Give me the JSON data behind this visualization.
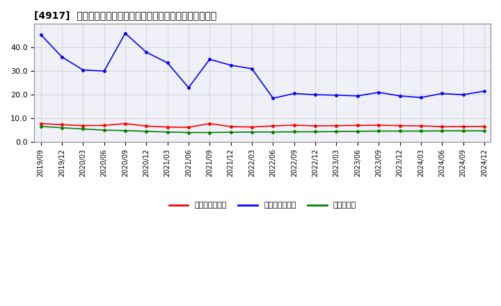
{
  "title": "[4917]  売上債権回転率、買入債務回転率、在庫回転率の推移",
  "dates": [
    "2019/09",
    "2019/12",
    "2020/03",
    "2020/06",
    "2020/09",
    "2020/12",
    "2021/03",
    "2021/06",
    "2021/09",
    "2021/12",
    "2022/03",
    "2022/06",
    "2022/09",
    "2022/12",
    "2023/03",
    "2023/06",
    "2023/09",
    "2023/12",
    "2024/03",
    "2024/06",
    "2024/09",
    "2024/12"
  ],
  "receivables_turnover": [
    7.8,
    7.3,
    6.9,
    7.0,
    7.8,
    6.7,
    6.3,
    6.2,
    7.8,
    6.5,
    6.3,
    6.8,
    7.1,
    6.8,
    6.9,
    7.0,
    7.1,
    6.9,
    6.8,
    6.5,
    6.5,
    6.6
  ],
  "payables_turnover": [
    45.5,
    36.0,
    30.5,
    30.0,
    46.0,
    38.0,
    33.5,
    23.0,
    35.0,
    32.5,
    31.0,
    18.5,
    20.5,
    20.0,
    19.8,
    19.5,
    21.0,
    19.5,
    18.8,
    20.5,
    20.0,
    21.5
  ],
  "inventory_turnover": [
    6.6,
    6.0,
    5.5,
    5.0,
    4.8,
    4.5,
    4.2,
    4.0,
    4.0,
    4.1,
    4.2,
    4.2,
    4.3,
    4.3,
    4.4,
    4.5,
    4.6,
    4.6,
    4.6,
    4.7,
    4.7,
    4.7
  ],
  "receivables_color": "#ff0000",
  "payables_color": "#0000ff",
  "inventory_color": "#008000",
  "background_color": "#ffffff",
  "plot_bg_color": "#f0f0f8",
  "grid_color": "#aaaaaa",
  "ylim": [
    0.0,
    50.0
  ],
  "yticks": [
    0.0,
    10.0,
    20.0,
    30.0,
    40.0
  ],
  "legend_labels": [
    "売上債権回転率",
    "買入債務回転率",
    "在庫回転率"
  ]
}
